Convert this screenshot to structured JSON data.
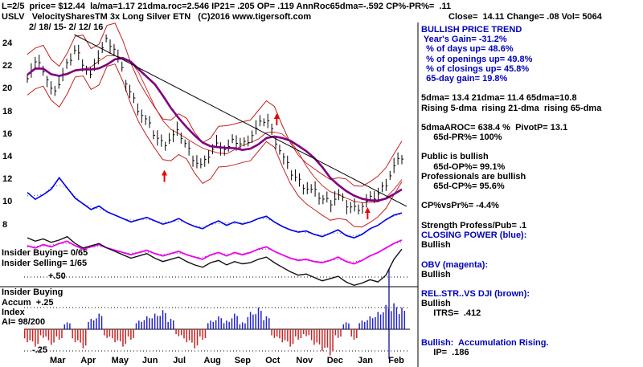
{
  "header": {
    "line1": "L=2/5  price= $12.44  la/ma=1.17 21dma.roc=2.546 IP21= .205 OP= .119 AnnRoc65dma=-.592 CP%-PR%=  .11",
    "line2_left": "USLV   VelocitySharesTM 3x Long Silver ETN   (C)2016 www.tigersoft.com",
    "line2_right": "Close=  14.11 Change= .08 Vol= 5064"
  },
  "chart_labels": {
    "date_range": "2/ 18/ 15- 2/ 12/ 16",
    "insider_buying_count": "Insider Buying= 0/65",
    "insider_selling_count": "Insider Selling= 1/65",
    "plus_50": "+.50",
    "insider_buying_label": "Insider Buying",
    "accum_line1": "Accum  +.25",
    "accum_line2": "Index",
    "accum_line3": "AI= 98/200",
    "minus_25": "-.25"
  },
  "right_panel": {
    "lines": [
      {
        "text": "BULLISH PRICE TREND",
        "color": "blue"
      },
      {
        "text": " Year's Gain= -31.2%",
        "color": "blue"
      },
      {
        "text": "  % of days up= 48.6%",
        "color": "blue"
      },
      {
        "text": "  % of openings up= 49.8%",
        "color": "blue"
      },
      {
        "text": "  % of closings up= 45.8%",
        "color": "blue"
      },
      {
        "text": "  65-day gain= 19.8%",
        "color": "blue"
      },
      {
        "text": "",
        "color": "black"
      },
      {
        "text": "5dma= 13.4 21dma= 11.4 65dma=10.8",
        "color": "black"
      },
      {
        "text": "Rising 5-dma  rising 21-dma  rising 65-dma",
        "color": "black"
      },
      {
        "text": "",
        "color": "black"
      },
      {
        "text": "5dmaAROC= 638.4 %  PivotP= 13.1",
        "color": "black"
      },
      {
        "text": "     65d-PR%= 100%",
        "color": "black"
      },
      {
        "text": "",
        "color": "black"
      },
      {
        "text": "Public is bullish",
        "color": "black"
      },
      {
        "text": "     65d-OP%= 99.1%",
        "color": "black"
      },
      {
        "text": "Professionals are bullish",
        "color": "black"
      },
      {
        "text": "     65d-CP%= 95.6%",
        "color": "black"
      },
      {
        "text": "",
        "color": "black"
      },
      {
        "text": "CP%vsPr%= -4.4%",
        "color": "black"
      },
      {
        "text": "",
        "color": "black"
      },
      {
        "text": "Strength Profess/Pub= .1",
        "color": "black"
      },
      {
        "text": "CLOSING POWER (blue):",
        "color": "blue"
      },
      {
        "text": "Bullish",
        "color": "black"
      },
      {
        "text": "",
        "color": "black"
      },
      {
        "text": "OBV (magenta):",
        "color": "blue"
      },
      {
        "text": "Bullish",
        "color": "black"
      },
      {
        "text": "",
        "color": "black"
      },
      {
        "text": "REL.STR..VS DJI (brown):",
        "color": "blue"
      },
      {
        "text": "Bullish",
        "color": "black"
      },
      {
        "text": "     ITRS=  .412",
        "color": "black"
      },
      {
        "text": "",
        "color": "black"
      },
      {
        "text": "",
        "color": "black"
      },
      {
        "text": "Bullish:  Accumulation Rising.",
        "color": "blue"
      },
      {
        "text": "     IP=  .186",
        "color": "black"
      }
    ]
  },
  "chart_data": {
    "type": "candlestick",
    "symbol": "USLV",
    "title": "USLV VelocityShares 3x Long Silver ETN, 2/18/15 - 2/12/16, daily bars with 65-dma (purple), price bands (red), Closing Power (blue), OBV (magenta), Rel.Str. vs DJI (black), Accumulation Index histogram",
    "x_months": [
      "Mar",
      "Apr",
      "May",
      "Jun",
      "Jul",
      "Aug",
      "Sep",
      "Oct",
      "Nov",
      "Dec",
      "Jan",
      "Feb"
    ],
    "price_axis_ticks": [
      24,
      22,
      20,
      18,
      16,
      14,
      12,
      10,
      8
    ],
    "price_axis_range": [
      8,
      24
    ],
    "price_close": [
      21.3,
      22.4,
      21.8,
      19.9,
      20.6,
      22.2,
      23.6,
      22.4,
      21.2,
      23.2,
      24.5,
      23.6,
      21.4,
      19.6,
      18.2,
      17.2,
      16.0,
      15.2,
      15.8,
      16.3,
      15.0,
      13.8,
      13.2,
      14.6,
      15.3,
      14.7,
      15.6,
      15.1,
      15.9,
      16.8,
      17.6,
      15.8,
      14.2,
      12.8,
      12.0,
      11.4,
      11.0,
      10.4,
      10.1,
      10.7,
      9.9,
      9.5,
      9.8,
      10.3,
      10.8,
      11.8,
      13.2,
      14.1
    ],
    "closing_power_blue": [
      10.9,
      10.3,
      10.7,
      11.2,
      12.2,
      11.3,
      10.4,
      9.9,
      9.4,
      9.7,
      9.2,
      8.9,
      8.6,
      8.3,
      8.5,
      8.7,
      8.4,
      8.1,
      8.3,
      8.6,
      8.2,
      7.9,
      7.7,
      8.1,
      8.4,
      8.0,
      8.3,
      8.1,
      8.3,
      8.6,
      8.8,
      8.3,
      7.9,
      7.6,
      7.4,
      7.5,
      7.2,
      7.0,
      7.3,
      7.6,
      7.1,
      6.9,
      7.2,
      7.7,
      8.0,
      8.5,
      8.9,
      9.1
    ],
    "obv_magenta": [
      6.2,
      6.0,
      6.3,
      6.1,
      6.4,
      6.6,
      6.2,
      5.9,
      6.1,
      6.3,
      6.0,
      5.8,
      5.6,
      5.4,
      5.6,
      5.8,
      5.5,
      5.3,
      5.5,
      5.7,
      5.4,
      5.2,
      5.0,
      5.4,
      5.6,
      5.3,
      5.6,
      5.4,
      5.6,
      5.9,
      6.1,
      5.7,
      5.4,
      5.1,
      4.9,
      5.0,
      4.8,
      4.7,
      4.9,
      5.2,
      4.8,
      4.6,
      4.9,
      5.3,
      5.6,
      6.0,
      6.4,
      6.7
    ],
    "rel_str_black": [
      6.9,
      6.6,
      6.8,
      6.5,
      6.7,
      7.0,
      6.4,
      6.0,
      6.2,
      6.4,
      6.0,
      5.7,
      5.4,
      5.1,
      5.3,
      5.5,
      5.1,
      4.8,
      5.0,
      5.2,
      4.8,
      4.5,
      4.3,
      4.7,
      4.9,
      4.5,
      4.8,
      4.6,
      4.7,
      5.0,
      5.2,
      4.7,
      4.3,
      3.9,
      3.6,
      3.7,
      3.4,
      3.1,
      3.3,
      3.5,
      3.0,
      2.7,
      2.9,
      3.2,
      3.0,
      3.6,
      5.0,
      5.9
    ],
    "accum_index": [
      -0.15,
      -0.2,
      -0.1,
      -0.18,
      -0.12,
      0.08,
      -0.15,
      -0.22,
      0.12,
      0.18,
      -0.1,
      -0.15,
      -0.2,
      -0.12,
      0.1,
      0.15,
      0.18,
      0.22,
      0.12,
      -0.08,
      -0.15,
      -0.22,
      -0.12,
      0.1,
      0.15,
      0.1,
      0.18,
      0.08,
      0.2,
      0.25,
      0.15,
      -0.1,
      -0.15,
      -0.2,
      -0.12,
      -0.08,
      -0.18,
      -0.25,
      -0.3,
      -0.1,
      0.08,
      -0.12,
      0.1,
      0.15,
      0.2,
      0.28,
      0.3,
      0.25
    ],
    "accum_axis": {
      "upper_label": "+.25",
      "lower_label": "-.25",
      "insider_upper_label": "+.50"
    },
    "band_offset": 1.8,
    "arrows": [
      {
        "i": 17.2,
        "price": 12.9
      },
      {
        "i": 31.3,
        "price": 17.9
      },
      {
        "i": 42.7,
        "price": 9.6
      }
    ],
    "trendline": {
      "i0": 5.9,
      "p0": 24.85,
      "i1": 47.6,
      "p1": 9.67
    },
    "colors": {
      "band": "#c42020",
      "ma": "#800080",
      "closing_power": "#0000ee",
      "obv": "#ee00ee",
      "rel_str": "#111111",
      "accum_pos": "#2222cc",
      "accum_neg": "#cc2222",
      "arrow": "#ee0000",
      "blue_text": "#0000bb"
    }
  }
}
